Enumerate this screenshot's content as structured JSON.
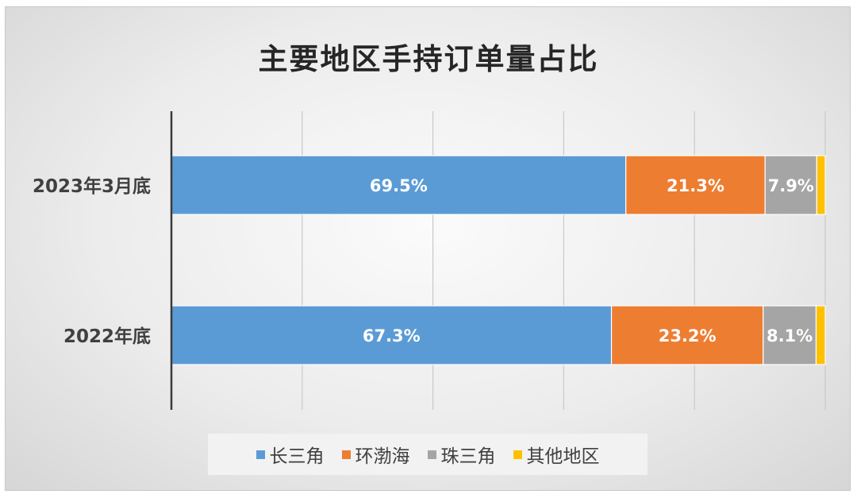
{
  "chart_data": {
    "type": "bar",
    "orientation": "horizontal",
    "stacked": true,
    "title": "主要地区手持订单量占比",
    "categories": [
      "2023年3月底",
      "2022年底"
    ],
    "series": [
      {
        "name": "长三角",
        "color": "#5b9bd5",
        "values": [
          69.5,
          67.3
        ],
        "labels": [
          "69.5%",
          "67.3%"
        ]
      },
      {
        "name": "环渤海",
        "color": "#ed7d31",
        "values": [
          21.3,
          23.2
        ],
        "labels": [
          "21.3%",
          "23.2%"
        ]
      },
      {
        "name": "珠三角",
        "color": "#a5a5a5",
        "values": [
          7.9,
          8.1
        ],
        "labels": [
          "7.9%",
          "8.1%"
        ]
      },
      {
        "name": "其他地区",
        "color": "#ffc000",
        "values": [
          1.3,
          1.4
        ],
        "labels": [
          "",
          ""
        ]
      }
    ],
    "xlim": [
      0,
      100
    ],
    "grid": true,
    "legend_position": "bottom"
  }
}
